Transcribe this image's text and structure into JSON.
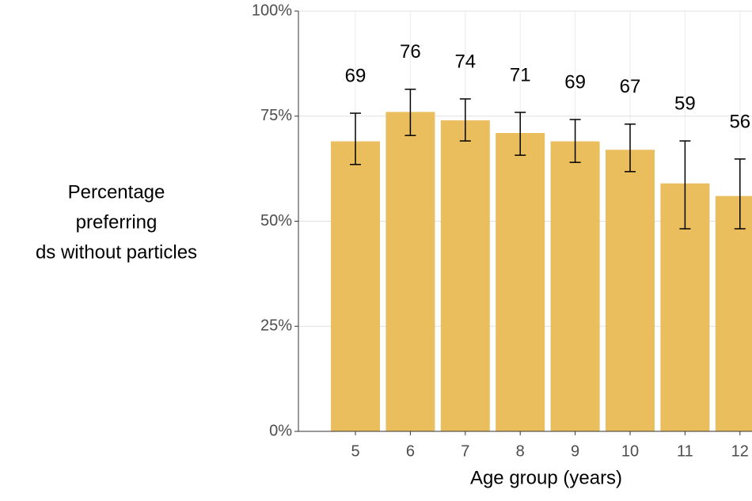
{
  "chart_data": {
    "type": "bar",
    "y_label_lines": [
      "Percentage",
      "preferring",
      "ds without particles"
    ],
    "x_label": "Age group (years)",
    "categories": [
      "5",
      "6",
      "7",
      "8",
      "9",
      "10",
      "11",
      "12"
    ],
    "values": [
      69,
      76,
      74,
      71,
      69,
      67,
      59,
      56
    ],
    "error_lower": [
      63.5,
      70.4,
      69.1,
      65.7,
      64.0,
      61.8,
      48.2,
      48.2
    ],
    "error_upper": [
      75.7,
      81.4,
      79.1,
      75.9,
      74.2,
      73.1,
      69.1,
      64.8
    ],
    "color": "#eabd5d",
    "ylim": [
      0,
      100
    ],
    "yticks": [
      {
        "value": 0,
        "label": "0%"
      },
      {
        "value": 25,
        "label": "25%"
      },
      {
        "value": 50,
        "label": "50%"
      },
      {
        "value": 75,
        "label": "75%"
      },
      {
        "value": 100,
        "label": "100%"
      }
    ],
    "grid": true
  }
}
